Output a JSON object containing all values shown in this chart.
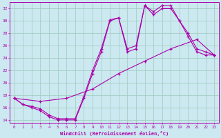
{
  "xlabel": "Windchill (Refroidissement éolien,°C)",
  "bg_color": "#cce8f0",
  "grid_color": "#99ccbb",
  "line_color": "#aa00aa",
  "xlim": [
    -0.5,
    23.5
  ],
  "ylim": [
    13.5,
    33.0
  ],
  "xticks": [
    0,
    1,
    2,
    3,
    4,
    5,
    6,
    7,
    8,
    9,
    10,
    11,
    12,
    13,
    14,
    15,
    16,
    17,
    18,
    19,
    20,
    21,
    22,
    23
  ],
  "yticks": [
    14,
    16,
    18,
    20,
    22,
    24,
    26,
    28,
    30,
    32
  ],
  "line1_x": [
    0,
    1,
    2,
    3,
    4,
    5,
    6,
    7,
    8,
    9,
    10,
    11,
    12,
    13,
    14,
    15,
    16,
    17,
    18,
    19,
    20,
    21,
    22,
    23
  ],
  "line1_y": [
    17.5,
    16.5,
    16.0,
    15.5,
    14.5,
    14.0,
    14.0,
    14.0,
    17.5,
    21.5,
    25.0,
    30.0,
    30.5,
    25.0,
    25.5,
    32.5,
    31.0,
    32.0,
    32.0,
    30.0,
    27.5,
    25.0,
    24.5,
    24.5
  ],
  "line2_x": [
    0,
    1,
    2,
    3,
    4,
    5,
    6,
    7,
    8,
    9,
    10,
    11,
    12,
    13,
    14,
    15,
    16,
    17,
    18,
    19,
    20,
    21,
    22,
    23
  ],
  "line2_y": [
    17.5,
    16.5,
    16.2,
    15.8,
    14.8,
    14.2,
    14.2,
    14.2,
    17.8,
    22.0,
    25.5,
    30.2,
    30.5,
    25.5,
    26.0,
    32.5,
    31.5,
    32.5,
    32.5,
    30.0,
    28.0,
    25.5,
    25.0,
    24.5
  ],
  "line3_x": [
    0,
    3,
    6,
    9,
    12,
    15,
    18,
    21,
    23
  ],
  "line3_y": [
    17.5,
    17.0,
    17.5,
    19.0,
    21.5,
    23.5,
    25.5,
    27.0,
    24.5
  ]
}
